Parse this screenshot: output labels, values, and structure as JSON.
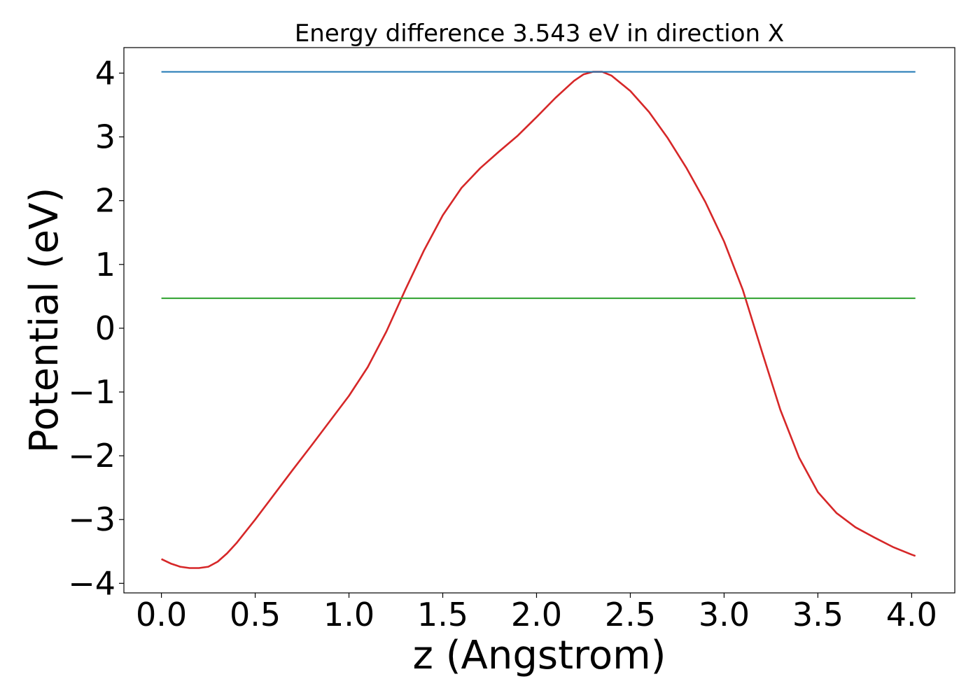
{
  "chart_data": {
    "type": "line",
    "title": "Energy difference 3.543 eV in direction X",
    "xlabel": "z (Angstrom)",
    "ylabel": "Potential (eV)",
    "xlim": [
      -0.2,
      4.23
    ],
    "ylim": [
      -4.15,
      4.4
    ],
    "grid": false,
    "xticks": [
      0.0,
      0.5,
      1.0,
      1.5,
      2.0,
      2.5,
      3.0,
      3.5,
      4.0
    ],
    "xtick_labels": [
      "0.0",
      "0.5",
      "1.0",
      "1.5",
      "2.0",
      "2.5",
      "3.0",
      "3.5",
      "4.0"
    ],
    "yticks": [
      -4,
      -3,
      -2,
      -1,
      0,
      1,
      2,
      3,
      4
    ],
    "ytick_labels": [
      "−4",
      "−3",
      "−2",
      "−1",
      "0",
      "1",
      "2",
      "3",
      "4"
    ],
    "series": [
      {
        "color": "#d62728",
        "x": [
          0.0,
          0.05,
          0.1,
          0.15,
          0.2,
          0.25,
          0.3,
          0.35,
          0.4,
          0.5,
          0.6,
          0.7,
          0.8,
          0.9,
          1.0,
          1.1,
          1.2,
          1.3,
          1.4,
          1.5,
          1.6,
          1.7,
          1.8,
          1.9,
          2.0,
          2.1,
          2.2,
          2.25,
          2.3,
          2.35,
          2.4,
          2.5,
          2.6,
          2.7,
          2.8,
          2.9,
          3.0,
          3.1,
          3.2,
          3.3,
          3.4,
          3.5,
          3.6,
          3.7,
          3.8,
          3.9,
          4.0,
          4.02
        ],
        "y": [
          -3.62,
          -3.69,
          -3.74,
          -3.76,
          -3.76,
          -3.74,
          -3.66,
          -3.53,
          -3.37,
          -3.0,
          -2.61,
          -2.22,
          -1.84,
          -1.45,
          -1.06,
          -0.61,
          -0.05,
          0.6,
          1.22,
          1.77,
          2.2,
          2.51,
          2.77,
          3.02,
          3.31,
          3.61,
          3.88,
          3.98,
          4.02,
          4.02,
          3.96,
          3.72,
          3.39,
          2.98,
          2.51,
          1.98,
          1.36,
          0.6,
          -0.35,
          -1.28,
          -2.03,
          -2.57,
          -2.9,
          -3.12,
          -3.28,
          -3.43,
          -3.55,
          -3.57
        ]
      },
      {
        "color": "#1f77b4",
        "x": [
          0.0,
          4.02
        ],
        "y": [
          4.02,
          4.02
        ]
      },
      {
        "color": "#2ca02c",
        "x": [
          0.0,
          4.02
        ],
        "y": [
          0.47,
          0.47
        ]
      }
    ]
  }
}
